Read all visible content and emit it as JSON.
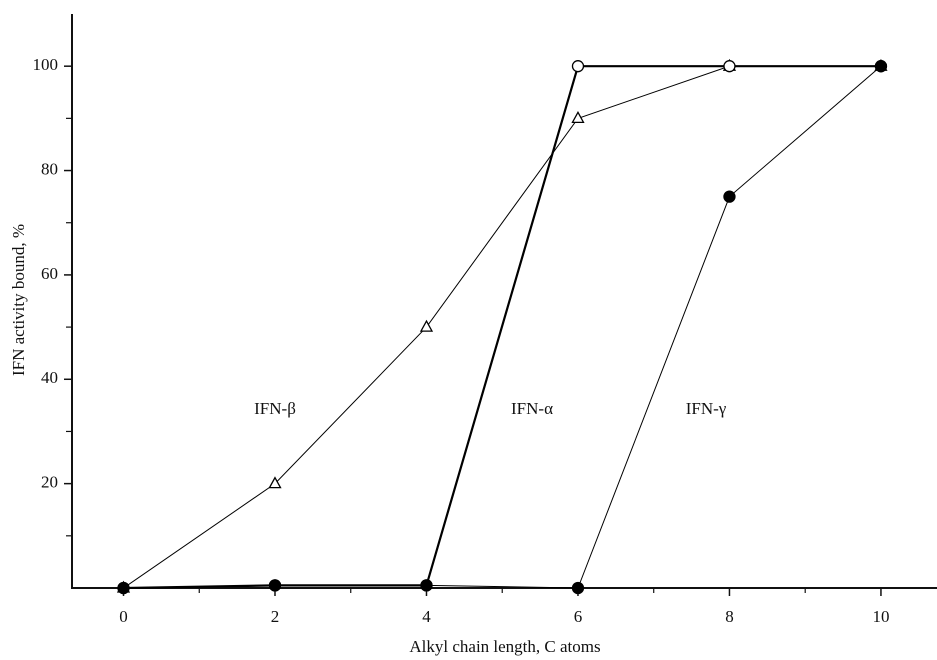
{
  "chart_data": {
    "type": "line",
    "xlabel": "Alkyl chain length, C atoms",
    "ylabel": "IFN activity bound, %",
    "xlim": [
      -0.68,
      10.74
    ],
    "ylim": [
      0,
      110
    ],
    "xticks": [
      0,
      2,
      4,
      6,
      8,
      10
    ],
    "yticks": [
      20,
      40,
      60,
      80,
      100
    ],
    "xticks_minor": [
      1,
      3,
      5,
      7,
      9
    ],
    "yticks_minor": [
      10,
      30,
      50,
      70,
      90
    ],
    "grid": false,
    "series": [
      {
        "name": "IFN-β",
        "color": "#000000",
        "marker": "open-triangle",
        "linewidth": 1,
        "x": [
          0,
          2,
          4,
          6,
          8,
          10
        ],
        "values": [
          0,
          20,
          50,
          90,
          100,
          100
        ]
      },
      {
        "name": "IFN-α",
        "color": "#000000",
        "marker": "open-circle",
        "linewidth": 2.2,
        "x": [
          0,
          2,
          4,
          6,
          8,
          10
        ],
        "values": [
          0,
          0.5,
          0.5,
          100,
          100,
          100
        ]
      },
      {
        "name": "IFN-γ",
        "color": "#000000",
        "marker": "filled-circle",
        "linewidth": 1,
        "x": [
          0,
          2,
          4,
          6,
          8,
          10
        ],
        "values": [
          0,
          0.5,
          0.5,
          0,
          75,
          100
        ]
      }
    ]
  }
}
